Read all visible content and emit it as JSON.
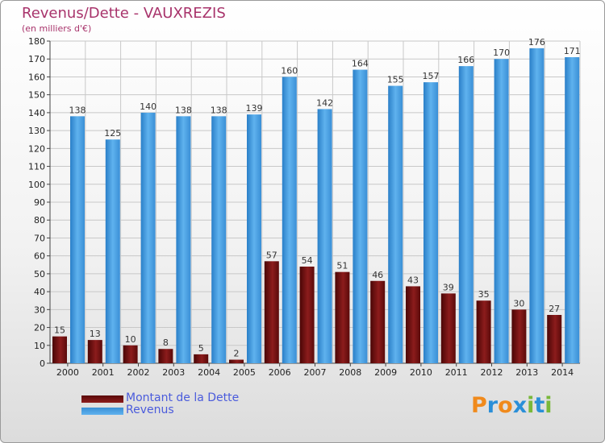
{
  "title": "Revenus/Dette - VAUXREZIS",
  "subtitle": "(en milliers d'€)",
  "chart_data": {
    "type": "bar",
    "categories": [
      "2000",
      "2001",
      "2002",
      "2003",
      "2004",
      "2005",
      "2006",
      "2007",
      "2008",
      "2009",
      "2010",
      "2011",
      "2012",
      "2013",
      "2014"
    ],
    "series": [
      {
        "name": "Montant de la Dette",
        "color": "#7a1616",
        "values": [
          15,
          13,
          10,
          8,
          5,
          2,
          57,
          54,
          51,
          46,
          43,
          39,
          35,
          30,
          27
        ]
      },
      {
        "name": "Revenus",
        "color": "#3f9ce0",
        "values": [
          138,
          125,
          140,
          138,
          138,
          139,
          160,
          142,
          164,
          155,
          157,
          166,
          170,
          176,
          171
        ]
      }
    ],
    "ylim": [
      0,
      180
    ],
    "yticks": [
      0,
      10,
      20,
      30,
      40,
      50,
      60,
      70,
      80,
      90,
      100,
      110,
      120,
      130,
      140,
      150,
      160,
      170,
      180
    ],
    "grid": true,
    "legend": "bottom-left"
  },
  "legend": [
    {
      "label": "Montant de la Dette",
      "color": "#7a1616"
    },
    {
      "label": "Revenus",
      "color": "#3f9ce0"
    }
  ],
  "logo": {
    "letters": [
      "P",
      "r",
      "o",
      "x",
      "i",
      "t",
      "i"
    ],
    "colors": [
      "#f08a1c",
      "#2a8fd8",
      "#f08a1c",
      "#2a8fd8",
      "#79b83a",
      "#2a8fd8",
      "#79b83a"
    ]
  }
}
